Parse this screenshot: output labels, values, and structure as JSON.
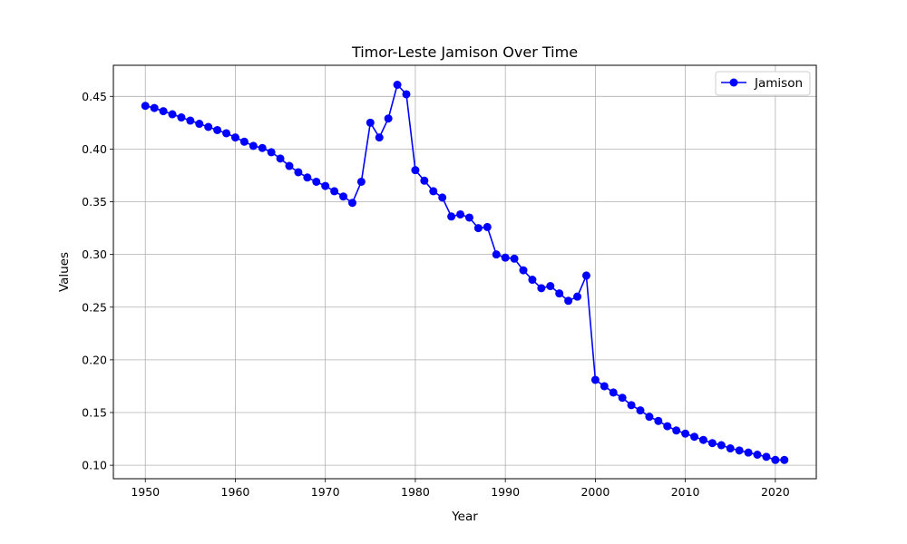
{
  "chart_data": {
    "type": "line",
    "title": "Timor-Leste Jamison Over Time",
    "xlabel": "Year",
    "ylabel": "Values",
    "xlim": [
      1946.45,
      2024.55
    ],
    "ylim": [
      0.0872,
      0.4795
    ],
    "xticks": [
      1950,
      1960,
      1970,
      1980,
      1990,
      2000,
      2010,
      2020
    ],
    "yticks": [
      0.1,
      0.15,
      0.2,
      0.25,
      0.3,
      0.35,
      0.4,
      0.45
    ],
    "ytick_labels": [
      "0.10",
      "0.15",
      "0.20",
      "0.25",
      "0.30",
      "0.35",
      "0.40",
      "0.45"
    ],
    "grid": true,
    "legend_position": "top-right",
    "series": [
      {
        "name": "Jamison",
        "color": "#0000ff",
        "marker": "circle",
        "x": [
          1950,
          1951,
          1952,
          1953,
          1954,
          1955,
          1956,
          1957,
          1958,
          1959,
          1960,
          1961,
          1962,
          1963,
          1964,
          1965,
          1966,
          1967,
          1968,
          1969,
          1970,
          1971,
          1972,
          1973,
          1974,
          1975,
          1976,
          1977,
          1978,
          1979,
          1980,
          1981,
          1982,
          1983,
          1984,
          1985,
          1986,
          1987,
          1988,
          1989,
          1990,
          1991,
          1992,
          1993,
          1994,
          1995,
          1996,
          1997,
          1998,
          1999,
          2000,
          2001,
          2002,
          2003,
          2004,
          2005,
          2006,
          2007,
          2008,
          2009,
          2010,
          2011,
          2012,
          2013,
          2014,
          2015,
          2016,
          2017,
          2018,
          2019,
          2020,
          2021
        ],
        "values": [
          0.441,
          0.439,
          0.436,
          0.433,
          0.43,
          0.427,
          0.424,
          0.421,
          0.418,
          0.415,
          0.411,
          0.407,
          0.403,
          0.401,
          0.397,
          0.391,
          0.384,
          0.378,
          0.373,
          0.369,
          0.365,
          0.36,
          0.355,
          0.349,
          0.369,
          0.425,
          0.411,
          0.429,
          0.461,
          0.452,
          0.38,
          0.37,
          0.36,
          0.354,
          0.336,
          0.338,
          0.335,
          0.325,
          0.326,
          0.3,
          0.297,
          0.296,
          0.285,
          0.276,
          0.268,
          0.27,
          0.263,
          0.256,
          0.26,
          0.28,
          0.181,
          0.175,
          0.169,
          0.164,
          0.157,
          0.152,
          0.146,
          0.142,
          0.137,
          0.133,
          0.13,
          0.127,
          0.124,
          0.121,
          0.119,
          0.116,
          0.114,
          0.112,
          0.11,
          0.108,
          0.105,
          0.105
        ]
      }
    ]
  }
}
